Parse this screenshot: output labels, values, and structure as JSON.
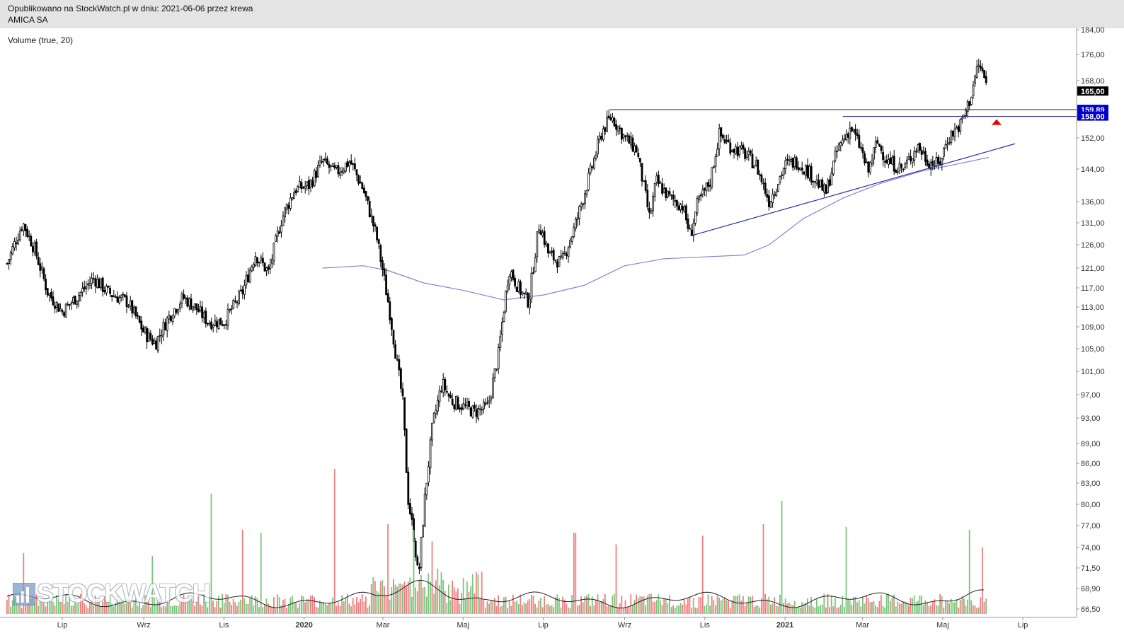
{
  "header": {
    "published_line": "Opublikowano na StockWatch.pl w dniu: 2021-06-06 przez krewa",
    "instrument": "AMICA SA"
  },
  "indicator_label": "Volume (true, 20)",
  "watermark": "STOCKWATCH",
  "colors": {
    "candle": "#000000",
    "ma_line": "#8c7fd6",
    "trendline": "#2233aa",
    "resistance": "#1a1a7a",
    "volume_up": "#7dc47d",
    "volume_down": "#ef7f7f",
    "volume_ma": "#222222",
    "last_price_tag": "#000000",
    "level_tag": "#0000cc",
    "arrow": "#ee0000"
  },
  "chart_data": {
    "type": "candlestick",
    "price_axis_ticks": [
      "184,00",
      "176,00",
      "168,00",
      "152,00",
      "144,00",
      "136,00",
      "131,00",
      "126,00",
      "121,00",
      "117,00",
      "113,00",
      "109,00",
      "105,00",
      "101,00",
      "97,00",
      "93,00",
      "89,00",
      "86,00",
      "83,00",
      "80,00",
      "77,00",
      "74,00",
      "71,50",
      "68,90",
      "66,50"
    ],
    "price_axis_values": [
      184,
      176,
      168,
      152,
      144,
      136,
      131,
      126,
      121,
      117,
      113,
      109,
      105,
      101,
      97,
      93,
      89,
      86,
      83,
      80,
      77,
      74,
      71.5,
      68.9,
      66.5
    ],
    "price_tags": [
      {
        "label": "165,00",
        "value": 165,
        "kind": "last"
      },
      {
        "label": "159,89",
        "value": 159.89,
        "kind": "level"
      },
      {
        "label": "158,00",
        "value": 158.0,
        "kind": "level"
      }
    ],
    "x_ticks": [
      {
        "label": "Lip",
        "date": "2019-07-01"
      },
      {
        "label": "Wrz",
        "date": "2019-09-01"
      },
      {
        "label": "Lis",
        "date": "2019-11-01"
      },
      {
        "label": "2020",
        "date": "2020-01-01",
        "bold": true
      },
      {
        "label": "Mar",
        "date": "2020-03-01"
      },
      {
        "label": "Maj",
        "date": "2020-05-01"
      },
      {
        "label": "Lip",
        "date": "2020-07-01"
      },
      {
        "label": "Wrz",
        "date": "2020-09-01"
      },
      {
        "label": "Lis",
        "date": "2020-11-01"
      },
      {
        "label": "2021",
        "date": "2021-01-01",
        "bold": true
      },
      {
        "label": "Mar",
        "date": "2021-03-01"
      },
      {
        "label": "Maj",
        "date": "2021-05-01"
      },
      {
        "label": "Lip",
        "date": "2021-07-01"
      }
    ],
    "price_path": [
      [
        "2019-05-20",
        122
      ],
      [
        "2019-06-01",
        131
      ],
      [
        "2019-06-10",
        125
      ],
      [
        "2019-06-20",
        116
      ],
      [
        "2019-07-01",
        112
      ],
      [
        "2019-07-15",
        116
      ],
      [
        "2019-07-25",
        119
      ],
      [
        "2019-08-05",
        116
      ],
      [
        "2019-08-20",
        114
      ],
      [
        "2019-09-01",
        108
      ],
      [
        "2019-09-10",
        106
      ],
      [
        "2019-09-20",
        111
      ],
      [
        "2019-10-01",
        115
      ],
      [
        "2019-10-10",
        113
      ],
      [
        "2019-10-20",
        110
      ],
      [
        "2019-11-01",
        110
      ],
      [
        "2019-11-15",
        116
      ],
      [
        "2019-11-25",
        124
      ],
      [
        "2019-12-05",
        120
      ],
      [
        "2019-12-15",
        132
      ],
      [
        "2019-12-25",
        139
      ],
      [
        "2020-01-05",
        140
      ],
      [
        "2020-01-15",
        146
      ],
      [
        "2020-01-25",
        143
      ],
      [
        "2020-02-05",
        146
      ],
      [
        "2020-02-15",
        139
      ],
      [
        "2020-02-25",
        128
      ],
      [
        "2020-03-05",
        114
      ],
      [
        "2020-03-12",
        102
      ],
      [
        "2020-03-16",
        96
      ],
      [
        "2020-03-20",
        81
      ],
      [
        "2020-03-25",
        75
      ],
      [
        "2020-03-28",
        70
      ],
      [
        "2020-04-02",
        81
      ],
      [
        "2020-04-08",
        92
      ],
      [
        "2020-04-15",
        99
      ],
      [
        "2020-04-22",
        96
      ],
      [
        "2020-05-01",
        95
      ],
      [
        "2020-05-10",
        94
      ],
      [
        "2020-05-20",
        95
      ],
      [
        "2020-05-28",
        104
      ],
      [
        "2020-06-05",
        121
      ],
      [
        "2020-06-12",
        117
      ],
      [
        "2020-06-20",
        114
      ],
      [
        "2020-06-28",
        131
      ],
      [
        "2020-07-05",
        124
      ],
      [
        "2020-07-15",
        122
      ],
      [
        "2020-07-25",
        130
      ],
      [
        "2020-08-05",
        142
      ],
      [
        "2020-08-15",
        154
      ],
      [
        "2020-08-22",
        158
      ],
      [
        "2020-09-01",
        152
      ],
      [
        "2020-09-10",
        149
      ],
      [
        "2020-09-20",
        132
      ],
      [
        "2020-09-25",
        141
      ],
      [
        "2020-10-05",
        137
      ],
      [
        "2020-10-15",
        135
      ],
      [
        "2020-10-21",
        128
      ],
      [
        "2020-10-26",
        135
      ],
      [
        "2020-11-05",
        141
      ],
      [
        "2020-11-12",
        153
      ],
      [
        "2020-11-20",
        150
      ],
      [
        "2020-12-01",
        148
      ],
      [
        "2020-12-10",
        145
      ],
      [
        "2020-12-20",
        136
      ],
      [
        "2021-01-01",
        145
      ],
      [
        "2021-01-10",
        146
      ],
      [
        "2021-01-20",
        143
      ],
      [
        "2021-02-01",
        138
      ],
      [
        "2021-02-10",
        149
      ],
      [
        "2021-02-20",
        155
      ],
      [
        "2021-02-28",
        149
      ],
      [
        "2021-03-05",
        143
      ],
      [
        "2021-03-12",
        151
      ],
      [
        "2021-03-20",
        146
      ],
      [
        "2021-04-01",
        144
      ],
      [
        "2021-04-12",
        150
      ],
      [
        "2021-04-20",
        146
      ],
      [
        "2021-04-28",
        145
      ],
      [
        "2021-05-05",
        152
      ],
      [
        "2021-05-15",
        156
      ],
      [
        "2021-05-22",
        163
      ],
      [
        "2021-05-28",
        173
      ],
      [
        "2021-06-01",
        170
      ],
      [
        "2021-06-04",
        165
      ]
    ],
    "ma_path": [
      [
        "2020-01-15",
        121
      ],
      [
        "2020-02-15",
        121.5
      ],
      [
        "2020-03-05",
        120.5
      ],
      [
        "2020-04-01",
        118
      ],
      [
        "2020-05-01",
        116.5
      ],
      [
        "2020-06-01",
        114.5
      ],
      [
        "2020-07-01",
        115.5
      ],
      [
        "2020-08-01",
        117.5
      ],
      [
        "2020-09-01",
        121.5
      ],
      [
        "2020-10-01",
        123
      ],
      [
        "2020-11-01",
        123.4
      ],
      [
        "2020-12-01",
        123.8
      ],
      [
        "2020-12-20",
        126
      ],
      [
        "2021-01-15",
        132
      ],
      [
        "2021-02-15",
        137
      ],
      [
        "2021-03-15",
        140.5
      ],
      [
        "2021-04-15",
        143.5
      ],
      [
        "2021-05-15",
        145.5
      ],
      [
        "2021-06-05",
        147
      ]
    ],
    "trendline": [
      [
        "2020-10-21",
        128
      ],
      [
        "2021-06-25",
        150.5
      ]
    ],
    "resistance_lines": [
      {
        "from": "2020-08-20",
        "value": 159.89
      },
      {
        "from": "2021-02-14",
        "value": 158.0
      }
    ],
    "volume": [
      {
        "date": "2019-06-02",
        "value": 42,
        "dir": "down"
      },
      {
        "date": "2019-09-07",
        "value": 40,
        "dir": "up"
      },
      {
        "date": "2019-10-22",
        "value": 83,
        "dir": "up"
      },
      {
        "date": "2019-11-15",
        "value": 58,
        "dir": "down"
      },
      {
        "date": "2019-11-29",
        "value": 56,
        "dir": "up"
      },
      {
        "date": "2020-01-24",
        "value": 100,
        "dir": "down"
      },
      {
        "date": "2020-03-05",
        "value": 62,
        "dir": "down"
      },
      {
        "date": "2020-03-25",
        "value": 58,
        "dir": "up"
      },
      {
        "date": "2020-04-08",
        "value": 50,
        "dir": "down"
      },
      {
        "date": "2020-07-25",
        "value": 56,
        "dir": "down"
      },
      {
        "date": "2020-08-25",
        "value": 48,
        "dir": "down"
      },
      {
        "date": "2020-10-30",
        "value": 54,
        "dir": "down"
      },
      {
        "date": "2020-12-15",
        "value": 62,
        "dir": "down"
      },
      {
        "date": "2020-12-29",
        "value": 78,
        "dir": "up"
      },
      {
        "date": "2021-02-16",
        "value": 60,
        "dir": "up"
      },
      {
        "date": "2021-05-21",
        "value": 58,
        "dir": "up"
      },
      {
        "date": "2021-05-31",
        "value": 46,
        "dir": "down"
      }
    ]
  }
}
